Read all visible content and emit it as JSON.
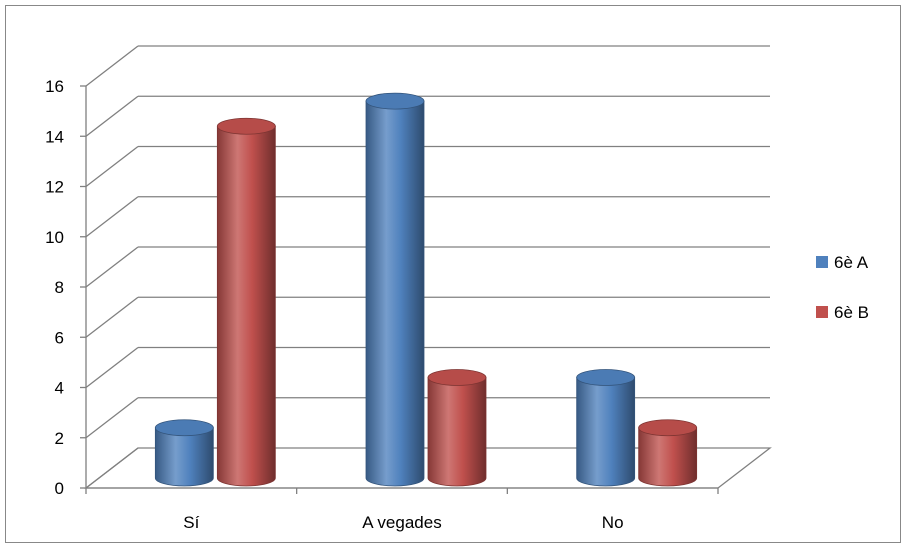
{
  "chart_data": {
    "type": "bar",
    "style": "3d-cylinder",
    "categories": [
      "Sí",
      "A vegades",
      "No"
    ],
    "series": [
      {
        "name": "6è A",
        "values": [
          2,
          15,
          4
        ],
        "color": "#4F81BD"
      },
      {
        "name": "6è B",
        "values": [
          14,
          4,
          2
        ],
        "color": "#C0504D"
      }
    ],
    "title": "",
    "xlabel": "",
    "ylabel": "",
    "ylim": [
      0,
      16
    ],
    "yticks": [
      0,
      2,
      4,
      6,
      8,
      10,
      12,
      14,
      16
    ],
    "grid": true,
    "legend_position": "right"
  }
}
